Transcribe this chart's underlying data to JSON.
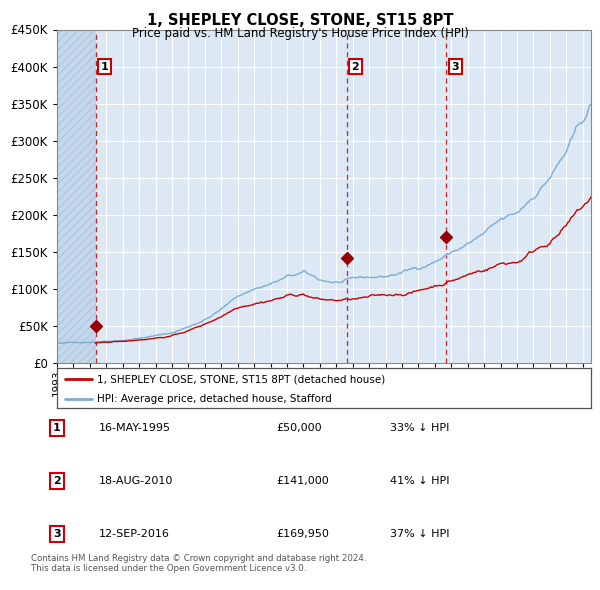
{
  "title": "1, SHEPLEY CLOSE, STONE, ST15 8PT",
  "subtitle": "Price paid vs. HM Land Registry's House Price Index (HPI)",
  "hpi_label": "HPI: Average price, detached house, Stafford",
  "property_label": "1, SHEPLEY CLOSE, STONE, ST15 8PT (detached house)",
  "transactions": [
    {
      "num": "1",
      "date": "16-MAY-1995",
      "price": "£50,000",
      "hpi_pct": "33% ↓ HPI",
      "date_val": 1995.37,
      "price_val": 50000
    },
    {
      "num": "2",
      "date": "18-AUG-2010",
      "price": "£141,000",
      "hpi_pct": "41% ↓ HPI",
      "date_val": 2010.63,
      "price_val": 141000
    },
    {
      "num": "3",
      "date": "12-SEP-2016",
      "price": "£169,950",
      "hpi_pct": "37% ↓ HPI",
      "date_val": 2016.7,
      "price_val": 169950
    }
  ],
  "ylim": [
    0,
    450000
  ],
  "xlim_start": 1993.0,
  "xlim_end": 2025.5,
  "background_color": "#dce9f5",
  "hatch_color": "#c5d8eb",
  "grid_color": "#ffffff",
  "red_line_color": "#cc0000",
  "blue_line_color": "#7aadd4",
  "marker_color": "#990000",
  "dashed_line_color": "#cc0000",
  "box_edge_color": "#cc0000",
  "footer_text": "Contains HM Land Registry data © Crown copyright and database right 2024.\nThis data is licensed under the Open Government Licence v3.0.",
  "yticks": [
    0,
    50000,
    100000,
    150000,
    200000,
    250000,
    300000,
    350000,
    400000,
    450000
  ],
  "ytick_labels": [
    "£0",
    "£50K",
    "£100K",
    "£150K",
    "£200K",
    "£250K",
    "£300K",
    "£350K",
    "£400K",
    "£450K"
  ]
}
